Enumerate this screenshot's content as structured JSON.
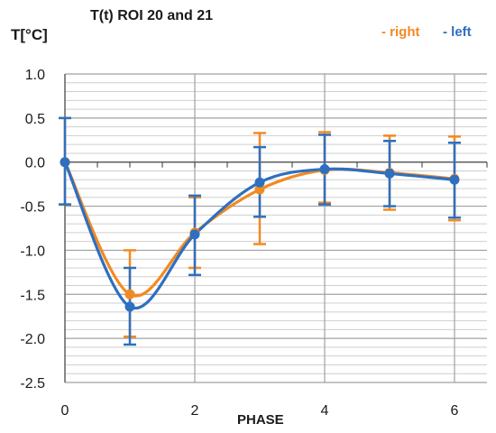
{
  "chart_data": {
    "type": "line",
    "title": "T(t)  ROI 20 and 21",
    "xlabel": "PHASE",
    "ylabel": "T[°C]",
    "xlim": [
      0,
      6.5
    ],
    "ylim": [
      -2.5,
      1.0
    ],
    "xticks": [
      "0",
      "2",
      "4",
      "6"
    ],
    "yticks": [
      "1.0",
      "0.5",
      "0.0",
      "-0.5",
      "-1.0",
      "-1.5",
      "-2.0",
      "-2.5"
    ],
    "grid": true,
    "legend_position": "top-right",
    "series": [
      {
        "name": "- right",
        "color": "#F28A22",
        "x": [
          0,
          1,
          2,
          3,
          4,
          5,
          6
        ],
        "y": [
          0.0,
          -1.5,
          -0.8,
          -0.31,
          -0.09,
          -0.12,
          -0.19
        ],
        "err_low": [
          -0.48,
          -1.98,
          -1.2,
          -0.93,
          -0.46,
          -0.54,
          -0.66
        ],
        "err_high": [
          0.5,
          -1.0,
          -0.4,
          0.33,
          0.34,
          0.3,
          0.29
        ]
      },
      {
        "name": "- left",
        "color": "#2E6FC0",
        "x": [
          0,
          1,
          2,
          3,
          4,
          5,
          6
        ],
        "y": [
          0.0,
          -1.64,
          -0.82,
          -0.23,
          -0.08,
          -0.13,
          -0.2
        ],
        "err_low": [
          -0.48,
          -2.07,
          -1.28,
          -0.62,
          -0.48,
          -0.5,
          -0.63
        ],
        "err_high": [
          0.5,
          -1.2,
          -0.38,
          0.17,
          0.31,
          0.24,
          0.22
        ]
      }
    ]
  }
}
